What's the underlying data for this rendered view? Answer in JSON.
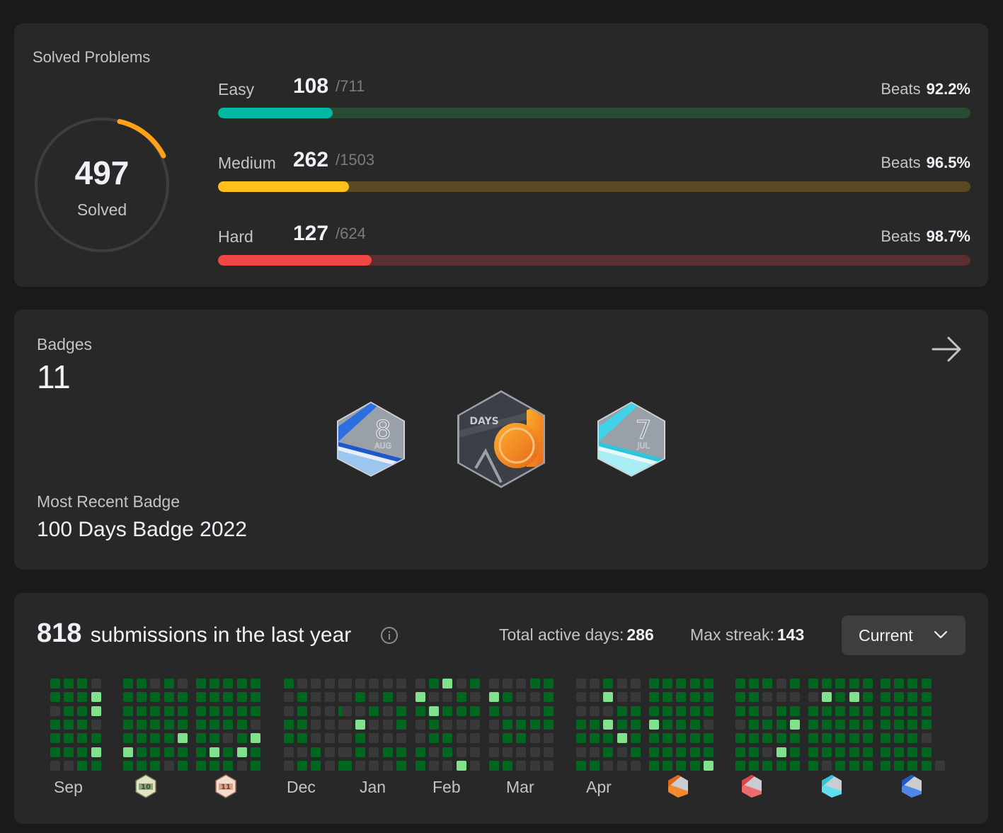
{
  "solved": {
    "title": "Solved Problems",
    "total": "497",
    "label": "Solved",
    "colors": {
      "easy": "#00b8a3",
      "medium": "#ffc01e",
      "hard": "#ef4743"
    },
    "difficulties": [
      {
        "key": "easy",
        "name": "Easy",
        "solved": "108",
        "total": "/711",
        "beats_label": "Beats",
        "beats": "92.2%",
        "fraction": 0.152,
        "color": "#00b8a3",
        "track": "#2a4a32"
      },
      {
        "key": "medium",
        "name": "Medium",
        "solved": "262",
        "total": "/1503",
        "beats_label": "Beats",
        "beats": "96.5%",
        "fraction": 0.174,
        "color": "#ffc01e",
        "track": "#5a4a24"
      },
      {
        "key": "hard",
        "name": "Hard",
        "solved": "127",
        "total": "/624",
        "beats_label": "Beats",
        "beats": "98.7%",
        "fraction": 0.204,
        "color": "#ef4743",
        "track": "#5a2f2f"
      }
    ]
  },
  "badges": {
    "label": "Badges",
    "count": "11",
    "items": [
      {
        "name": "Aug badge",
        "number": "8",
        "month": "AUG"
      },
      {
        "name": "100 Days Badge",
        "text": "DAYS"
      },
      {
        "name": "Jul badge",
        "number": "7",
        "month": "JUL"
      }
    ],
    "recent_label": "Most Recent Badge",
    "recent_name": "100 Days Badge 2022"
  },
  "submissions": {
    "count": "818",
    "text": "submissions in the last year",
    "active_label": "Total active days:",
    "active_days": "286",
    "streak_label": "Max streak:",
    "max_streak": "143",
    "range_button": "Current",
    "months": [
      "Sep",
      "Dec",
      "Jan",
      "Feb",
      "Mar",
      "Apr"
    ],
    "month_badge_numbers": [
      "10",
      "11"
    ],
    "colors": {
      "empty": "#393939",
      "level1": "#016620",
      "level2": "#28c244",
      "level3": "#7fe18b"
    }
  }
}
